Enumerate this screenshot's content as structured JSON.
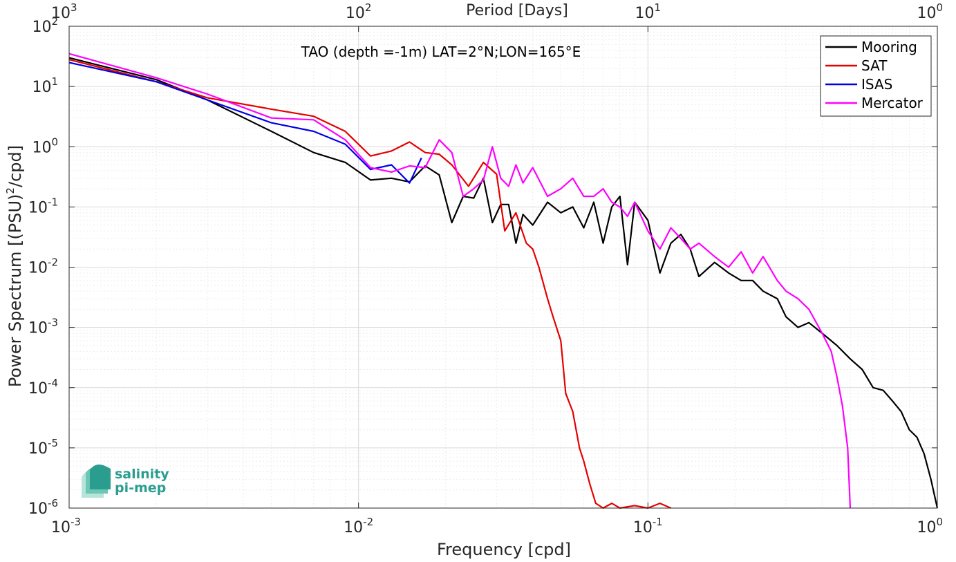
{
  "chart_data": {
    "type": "line",
    "title": "",
    "annotation": "TAO (depth =-1m) LAT=2°N;LON=165°E",
    "xlabel": "Frequency [cpd]",
    "ylabel_main": "Power Spectrum [(PSU)",
    "ylabel_sup": "2",
    "ylabel_tail": "/cpd]",
    "top_xlabel": "Period [Days]",
    "xscale": "log",
    "yscale": "log",
    "xlim": [
      0.001,
      1
    ],
    "ylim": [
      1e-06,
      100
    ],
    "grid": true,
    "legend_position": "top-right",
    "x_ticks": [
      {
        "value": 0.001,
        "base": "10",
        "exp": "-3"
      },
      {
        "value": 0.01,
        "base": "10",
        "exp": "-2"
      },
      {
        "value": 0.1,
        "base": "10",
        "exp": "-1"
      },
      {
        "value": 1,
        "base": "10",
        "exp": "0"
      }
    ],
    "top_ticks": [
      {
        "value": 0.001,
        "base": "10",
        "exp": "3"
      },
      {
        "value": 0.01,
        "base": "10",
        "exp": "2"
      },
      {
        "value": 0.1,
        "base": "10",
        "exp": "1"
      },
      {
        "value": 1,
        "base": "10",
        "exp": "0"
      }
    ],
    "y_ticks": [
      {
        "value": 100,
        "base": "10",
        "exp": "2"
      },
      {
        "value": 10,
        "base": "10",
        "exp": "1"
      },
      {
        "value": 1,
        "base": "10",
        "exp": "0"
      },
      {
        "value": 0.1,
        "base": "10",
        "exp": "-1"
      },
      {
        "value": 0.01,
        "base": "10",
        "exp": "-2"
      },
      {
        "value": 0.001,
        "base": "10",
        "exp": "-3"
      },
      {
        "value": 0.0001,
        "base": "10",
        "exp": "-4"
      },
      {
        "value": 1e-05,
        "base": "10",
        "exp": "-5"
      },
      {
        "value": 1e-06,
        "base": "10",
        "exp": "-6"
      }
    ],
    "series": [
      {
        "name": "Mooring",
        "color": "#000000",
        "x": [
          0.001,
          0.002,
          0.003,
          0.005,
          0.007,
          0.009,
          0.011,
          0.013,
          0.015,
          0.017,
          0.019,
          0.021,
          0.023,
          0.025,
          0.027,
          0.029,
          0.031,
          0.033,
          0.035,
          0.037,
          0.04,
          0.045,
          0.05,
          0.055,
          0.06,
          0.065,
          0.07,
          0.075,
          0.08,
          0.085,
          0.09,
          0.1,
          0.11,
          0.12,
          0.13,
          0.14,
          0.15,
          0.17,
          0.19,
          0.21,
          0.23,
          0.25,
          0.28,
          0.3,
          0.33,
          0.36,
          0.4,
          0.45,
          0.5,
          0.55,
          0.6,
          0.65,
          0.7,
          0.75,
          0.8,
          0.85,
          0.9,
          0.95,
          1.0
        ],
        "y": [
          30,
          13,
          6,
          1.8,
          0.8,
          0.55,
          0.28,
          0.3,
          0.26,
          0.48,
          0.34,
          0.055,
          0.15,
          0.14,
          0.3,
          0.055,
          0.11,
          0.11,
          0.025,
          0.075,
          0.05,
          0.12,
          0.08,
          0.1,
          0.045,
          0.12,
          0.025,
          0.1,
          0.15,
          0.011,
          0.12,
          0.06,
          0.008,
          0.025,
          0.035,
          0.02,
          0.007,
          0.012,
          0.008,
          0.006,
          0.006,
          0.004,
          0.003,
          0.0015,
          0.001,
          0.0012,
          0.0008,
          0.0005,
          0.0003,
          0.0002,
          0.0001,
          9e-05,
          6e-05,
          4e-05,
          2e-05,
          1.5e-05,
          8e-06,
          3e-06,
          1e-06
        ]
      },
      {
        "name": "SAT",
        "color": "#e60000",
        "x": [
          0.001,
          0.002,
          0.003,
          0.005,
          0.007,
          0.009,
          0.011,
          0.013,
          0.015,
          0.017,
          0.019,
          0.021,
          0.024,
          0.027,
          0.03,
          0.032,
          0.035,
          0.038,
          0.04,
          0.042,
          0.045,
          0.047,
          0.05,
          0.052,
          0.055,
          0.058,
          0.06,
          0.063,
          0.066,
          0.07,
          0.075,
          0.08,
          0.09,
          0.1,
          0.11,
          0.12
        ],
        "y": [
          28,
          12,
          6.5,
          4.2,
          3.2,
          1.8,
          0.7,
          0.85,
          1.2,
          0.8,
          0.75,
          0.5,
          0.22,
          0.55,
          0.35,
          0.04,
          0.08,
          0.025,
          0.02,
          0.01,
          0.003,
          0.0015,
          0.0006,
          8e-05,
          4e-05,
          1e-05,
          6e-06,
          2.5e-06,
          1.2e-06,
          1e-06,
          1.2e-06,
          1e-06,
          1.1e-06,
          1e-06,
          1.2e-06,
          1e-06
        ]
      },
      {
        "name": "ISAS",
        "color": "#0000e6",
        "x": [
          0.001,
          0.002,
          0.003,
          0.005,
          0.007,
          0.009,
          0.011,
          0.013,
          0.015,
          0.0165
        ],
        "y": [
          25,
          12,
          6.0,
          2.5,
          1.8,
          1.1,
          0.42,
          0.5,
          0.25,
          0.65
        ]
      },
      {
        "name": "Mercator",
        "color": "#ff00ff",
        "x": [
          0.001,
          0.002,
          0.003,
          0.005,
          0.007,
          0.009,
          0.011,
          0.013,
          0.015,
          0.017,
          0.019,
          0.021,
          0.023,
          0.025,
          0.027,
          0.029,
          0.031,
          0.033,
          0.035,
          0.037,
          0.04,
          0.045,
          0.05,
          0.055,
          0.06,
          0.065,
          0.07,
          0.075,
          0.08,
          0.085,
          0.09,
          0.1,
          0.11,
          0.12,
          0.13,
          0.14,
          0.15,
          0.17,
          0.19,
          0.21,
          0.23,
          0.25,
          0.28,
          0.3,
          0.33,
          0.36,
          0.4,
          0.43,
          0.45,
          0.47,
          0.49,
          0.5
        ],
        "y": [
          35,
          14,
          7.5,
          3.0,
          2.8,
          1.3,
          0.45,
          0.38,
          0.48,
          0.45,
          1.3,
          0.8,
          0.15,
          0.2,
          0.28,
          1.0,
          0.3,
          0.22,
          0.5,
          0.25,
          0.45,
          0.15,
          0.2,
          0.3,
          0.15,
          0.15,
          0.2,
          0.12,
          0.1,
          0.07,
          0.12,
          0.04,
          0.02,
          0.045,
          0.03,
          0.02,
          0.025,
          0.015,
          0.01,
          0.018,
          0.008,
          0.015,
          0.006,
          0.004,
          0.003,
          0.002,
          0.0008,
          0.0004,
          0.00015,
          5e-05,
          1e-05,
          1e-06
        ]
      }
    ]
  },
  "logo": {
    "line1": "salinity",
    "line2": "pi-mep",
    "color": "#2a9d8f"
  }
}
